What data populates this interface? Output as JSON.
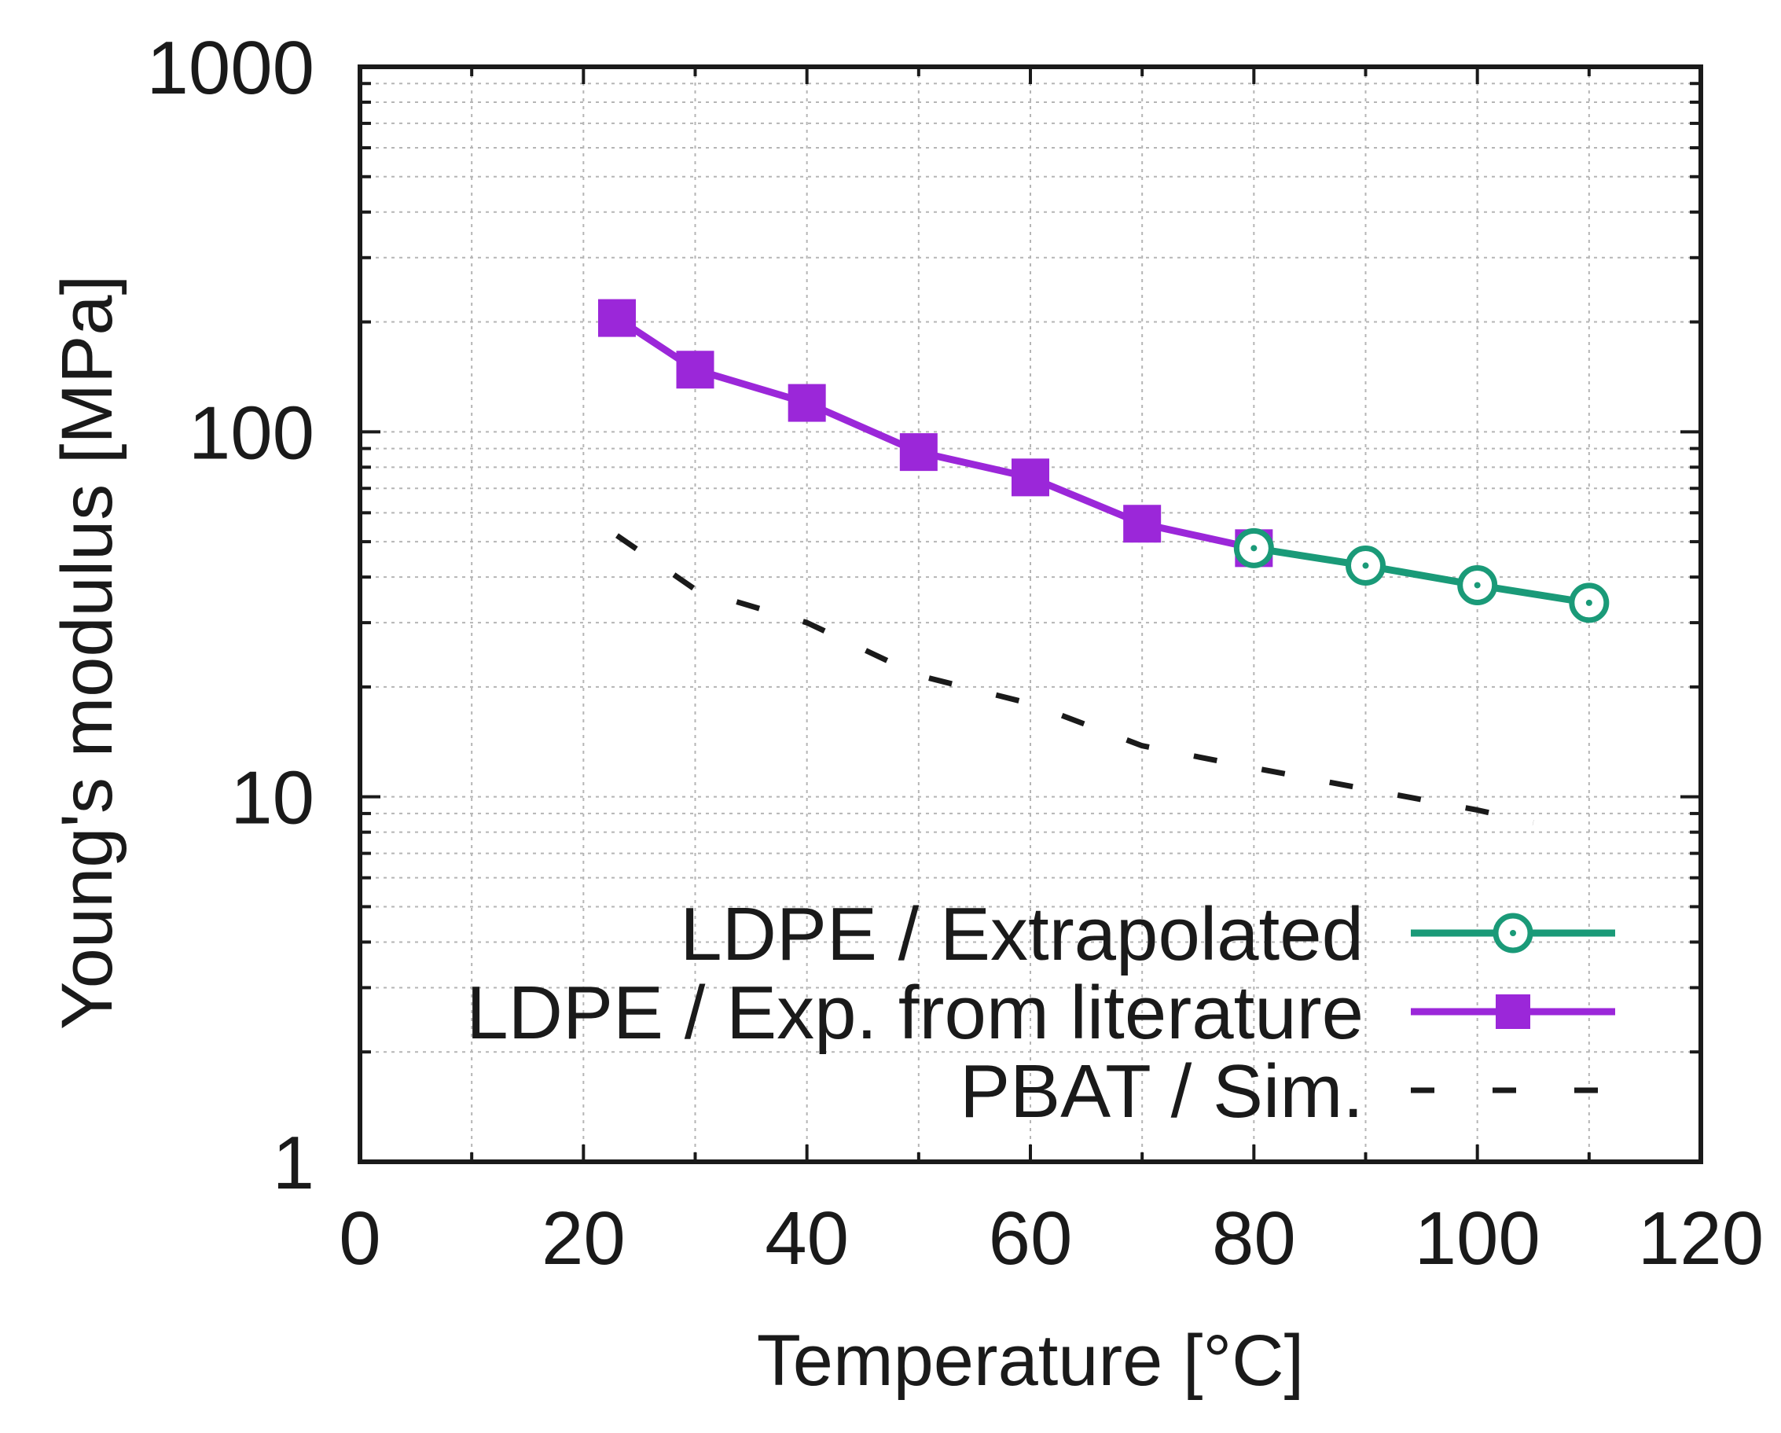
{
  "chart_data": {
    "type": "line",
    "title": "",
    "xlabel": "Temperature [°C]",
    "ylabel": "Young's modulus [MPa]",
    "xlim": [
      0,
      120
    ],
    "ylim": [
      1,
      1000
    ],
    "yscale": "log",
    "xticks": [
      0,
      20,
      40,
      60,
      80,
      100,
      120
    ],
    "xtick_labels": [
      "0",
      "20",
      "40",
      "60",
      "80",
      "100",
      "120"
    ],
    "yticks": [
      1,
      10,
      100,
      1000
    ],
    "ytick_labels": [
      "1",
      "10",
      "100",
      "1000"
    ],
    "grid": true,
    "legend_position": "bottom-right",
    "series": [
      {
        "name": "LDPE / Extrapolated",
        "color": "#1a9a78",
        "marker": "open-circle",
        "line": "solid",
        "x": [
          80,
          90,
          100,
          110
        ],
        "y": [
          48,
          43,
          38,
          34
        ]
      },
      {
        "name": "LDPE / Exp. from literature",
        "color": "#9b27d9",
        "marker": "filled-square",
        "line": "solid",
        "x": [
          23,
          30,
          40,
          50,
          60,
          70,
          80
        ],
        "y": [
          205,
          148,
          120,
          88,
          75,
          56,
          48
        ]
      },
      {
        "name": "PBAT / Sim.",
        "color": "#1a1a1a",
        "marker": "none",
        "line": "dashed",
        "x": [
          23,
          30,
          40,
          50,
          60,
          70,
          80,
          90,
          100,
          105
        ],
        "y": [
          52,
          37,
          30,
          21.5,
          18,
          13.8,
          12,
          10.5,
          9.2,
          8.5
        ]
      }
    ]
  }
}
